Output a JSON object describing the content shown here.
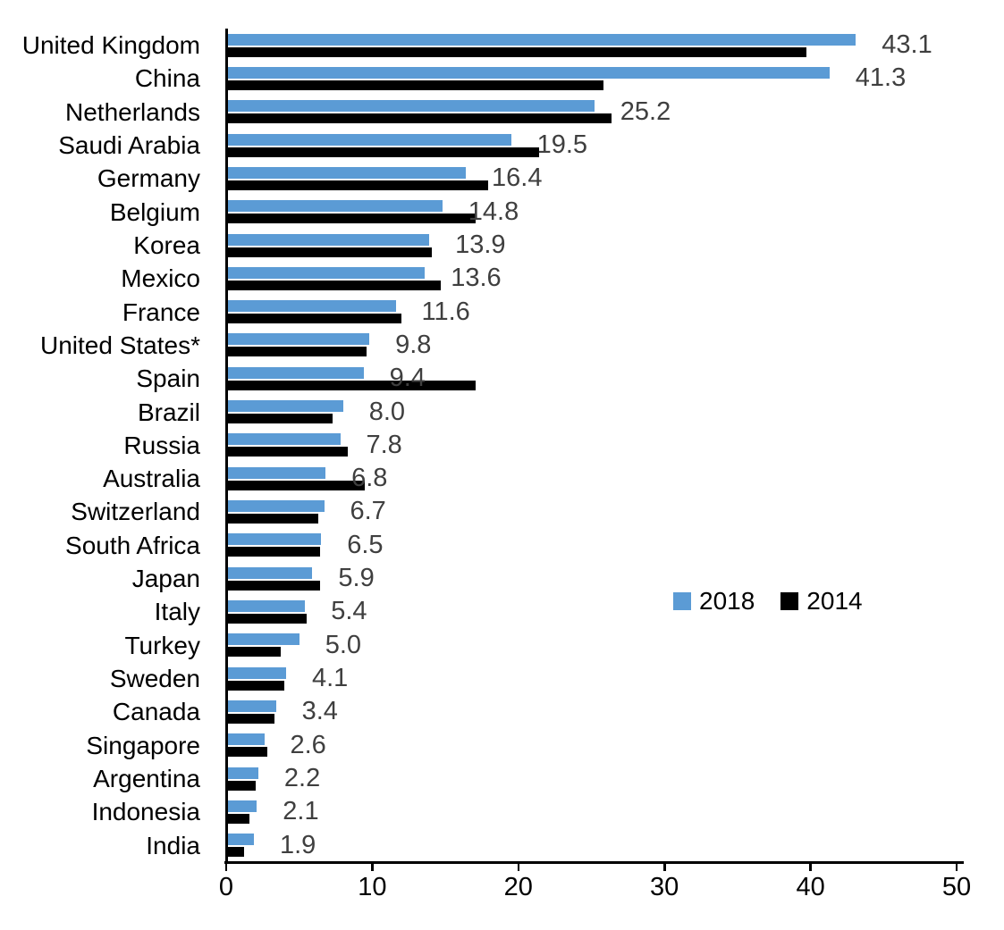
{
  "chart_data": {
    "type": "bar",
    "orientation": "horizontal",
    "categories": [
      "United Kingdom",
      "China",
      "Netherlands",
      "Saudi Arabia",
      "Germany",
      "Belgium",
      "Korea",
      "Mexico",
      "France",
      "United States*",
      "Spain",
      "Brazil",
      "Russia",
      "Australia",
      "Switzerland",
      "South Africa",
      "Japan",
      "Italy",
      "Turkey",
      "Sweden",
      "Canada",
      "Singapore",
      "Argentina",
      "Indonesia",
      "India"
    ],
    "series": [
      {
        "name": "2018",
        "color": "#5B9BD5",
        "values": [
          43.1,
          41.3,
          25.2,
          19.5,
          16.4,
          14.8,
          13.9,
          13.6,
          11.6,
          9.8,
          9.4,
          8.0,
          7.8,
          6.8,
          6.7,
          6.5,
          5.9,
          5.4,
          5.0,
          4.1,
          3.4,
          2.6,
          2.2,
          2.1,
          1.9
        ]
      },
      {
        "name": "2014",
        "color": "#000000",
        "values": [
          39.7,
          25.8,
          26.4,
          21.4,
          17.9,
          17.1,
          14.1,
          14.7,
          12.0,
          9.6,
          17.1,
          7.3,
          8.3,
          9.5,
          6.3,
          6.4,
          6.4,
          5.5,
          3.7,
          4.0,
          3.3,
          2.8,
          2.0,
          1.6,
          1.2
        ]
      }
    ],
    "data_labels": [
      "43.1",
      "41.3",
      "25.2",
      "19.5",
      "16.4",
      "14.8",
      "13.9",
      "13.6",
      "11.6",
      "9.8",
      "9.4",
      "8.0",
      "7.8",
      "6.8",
      "6.7",
      "6.5",
      "5.9",
      "5.4",
      "5.0",
      "4.1",
      "3.4",
      "2.6",
      "2.2",
      "2.1",
      "1.9"
    ],
    "data_label_series": "2018",
    "title": "",
    "xlabel": "",
    "ylabel": "",
    "xlim": [
      0,
      50
    ],
    "x_ticks": [
      "0",
      "10",
      "20",
      "30",
      "40",
      "50"
    ],
    "grid": false,
    "legend_position": "middle-right",
    "value_label_color": "#3f3f3f"
  },
  "legend": {
    "items": [
      {
        "label": "2018",
        "color": "#5B9BD5"
      },
      {
        "label": "2014",
        "color": "#000000"
      }
    ]
  }
}
